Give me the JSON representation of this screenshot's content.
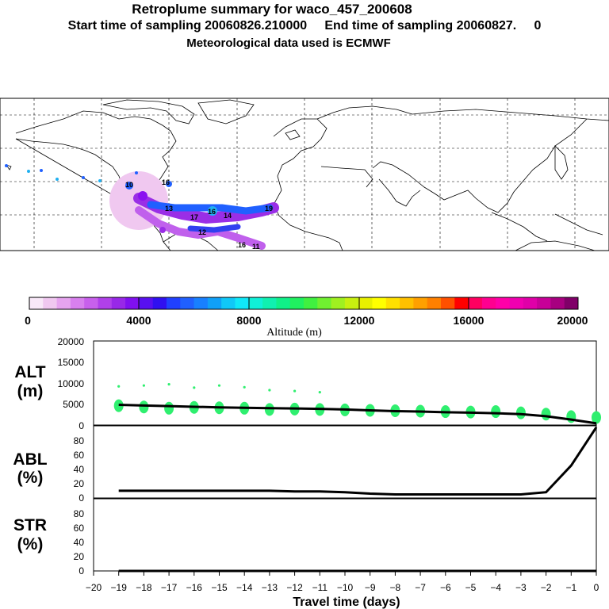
{
  "header": {
    "title": "Retroplume summary for waco_457_200608",
    "subtitle": "Start time of sampling 20060826.210000     End time of sampling 20060827.     0",
    "met_line": "Meteorological data used is ECMWF"
  },
  "colors": {
    "plume_pink": "#f0c8f0",
    "plume_violet": "#9a2ee6",
    "plume_blue": "#2060ff",
    "plume_cyan": "#20b0f0",
    "alt_dots": "#2fef6f",
    "line": "#000000"
  },
  "colorbar": {
    "ticks": [
      "0",
      "4000",
      "8000",
      "12000",
      "16000",
      "20000"
    ],
    "label": "Altitude (m)",
    "colors": [
      "#f8e8f8",
      "#f0c8f0",
      "#e6a4ef",
      "#d880ee",
      "#c860ec",
      "#b040ea",
      "#9828e8",
      "#8010f0",
      "#5810f0",
      "#3010f0",
      "#2040ff",
      "#2060ff",
      "#1880ff",
      "#10a0f8",
      "#10c8f8",
      "#10e8f8",
      "#10f0d8",
      "#10f0b0",
      "#10f088",
      "#20f060",
      "#40f040",
      "#70f030",
      "#a0f020",
      "#c8f010",
      "#e8f000",
      "#ffff00",
      "#ffe000",
      "#ffc000",
      "#ffa000",
      "#ff8000",
      "#ff5000",
      "#ff0000",
      "#ff0060",
      "#ff0090",
      "#ff00a8",
      "#f000b0",
      "#e000a8",
      "#c80098",
      "#a80080",
      "#800068"
    ]
  },
  "panels": {
    "alt": {
      "label": "ALT",
      "unit": "(m)",
      "ticks": [
        "20000",
        "15000",
        "10000",
        "5000",
        "0"
      ]
    },
    "abl": {
      "label": "ABL",
      "unit": "(%)",
      "ticks": [
        "80",
        "60",
        "40",
        "20",
        "0"
      ]
    },
    "str": {
      "label": "STR",
      "unit": "(%)",
      "ticks": [
        "80",
        "60",
        "40",
        "20",
        "0"
      ]
    }
  },
  "xaxis": {
    "ticks": [
      "−20",
      "−19",
      "−18",
      "−17",
      "−16",
      "−15",
      "−14",
      "−13",
      "−12",
      "−11",
      "−10",
      "−9",
      "−8",
      "−7",
      "−6",
      "−5",
      "−4",
      "−3",
      "−2",
      "−1",
      "0"
    ],
    "label": "Travel time (days)"
  },
  "map": {
    "labels": [
      "10",
      "16",
      "16",
      "13",
      "17",
      "14",
      "19",
      "12",
      "16",
      "11"
    ]
  },
  "chart_data": [
    {
      "type": "line",
      "title": "ALT",
      "ylabel": "(m)",
      "xlabel": "Travel time (days)",
      "ylim": [
        0,
        20000
      ],
      "x": [
        -19,
        -18,
        -17,
        -16,
        -15,
        -14,
        -13,
        -12,
        -11,
        -10,
        -9,
        -8,
        -7,
        -6,
        -5,
        -4,
        -3,
        -2,
        -1,
        0
      ],
      "series": [
        {
          "name": "mean altitude",
          "values": [
            4800,
            4650,
            4500,
            4350,
            4200,
            4100,
            4000,
            3950,
            3850,
            3700,
            3500,
            3300,
            3200,
            3050,
            2950,
            2800,
            2600,
            2100,
            1300,
            400
          ]
        },
        {
          "name": "cluster altitude (large)",
          "values": [
            4600,
            4300,
            4000,
            4200,
            4100,
            4000,
            3700,
            3800,
            3700,
            3600,
            3500,
            3400,
            3300,
            3200,
            3100,
            3200,
            2900,
            2600,
            2000,
            1800
          ]
        },
        {
          "name": "cluster altitude (small)",
          "values": [
            9200,
            9400,
            9700,
            8900,
            9400,
            9000,
            8300,
            8100,
            7800,
            null,
            null,
            null,
            null,
            null,
            null,
            null,
            null,
            null,
            null,
            null
          ]
        }
      ]
    },
    {
      "type": "line",
      "title": "ABL",
      "ylabel": "(%)",
      "xlabel": "Travel time (days)",
      "ylim": [
        0,
        100
      ],
      "x": [
        -19,
        -18,
        -17,
        -16,
        -15,
        -14,
        -13,
        -12,
        -11,
        -10,
        -9,
        -8,
        -7,
        -6,
        -5,
        -4,
        -3,
        -2,
        -1,
        0
      ],
      "values": [
        10,
        10,
        10,
        10,
        10,
        10,
        10,
        9,
        9,
        8,
        6,
        5,
        5,
        5,
        5,
        5,
        5,
        8,
        45,
        98
      ]
    },
    {
      "type": "line",
      "title": "STR",
      "ylabel": "(%)",
      "xlabel": "Travel time (days)",
      "ylim": [
        0,
        100
      ],
      "x": [
        -19,
        -18,
        -17,
        -16,
        -15,
        -14,
        -13,
        -12,
        -11,
        -10,
        -9,
        -8,
        -7,
        -6,
        -5,
        -4,
        -3,
        -2,
        -1,
        0
      ],
      "values": [
        0,
        0,
        0,
        0,
        0,
        0,
        0,
        0,
        0,
        0,
        0,
        0,
        0,
        0,
        0,
        0,
        0,
        0,
        0,
        0
      ]
    }
  ]
}
